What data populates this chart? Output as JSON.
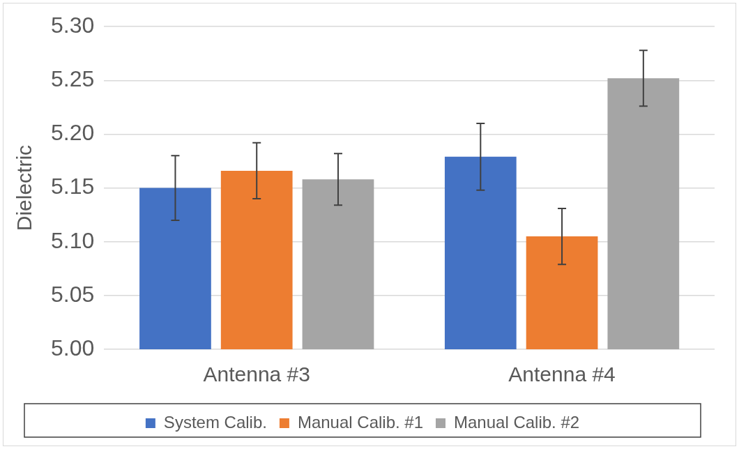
{
  "chart_data": {
    "type": "bar",
    "ylabel": "Dielectric",
    "categories": [
      "Antenna #3",
      "Antenna #4"
    ],
    "series": [
      {
        "name": "System Calib.",
        "color": "#4472c4",
        "values": [
          5.15,
          5.179
        ],
        "errors": [
          0.03,
          0.031
        ]
      },
      {
        "name": "Manual Calib. #1",
        "color": "#ed7d31",
        "values": [
          5.166,
          5.105
        ],
        "errors": [
          0.026,
          0.026
        ]
      },
      {
        "name": "Manual Calib. #2",
        "color": "#a5a5a5",
        "values": [
          5.158,
          5.252
        ],
        "errors": [
          0.024,
          0.026
        ]
      }
    ],
    "ylim": [
      5.0,
      5.3
    ],
    "yticks": [
      {
        "value": 5.0,
        "label": "5.00"
      },
      {
        "value": 5.05,
        "label": "5.05"
      },
      {
        "value": 5.1,
        "label": "5.10"
      },
      {
        "value": 5.15,
        "label": "5.15"
      },
      {
        "value": 5.2,
        "label": "5.20"
      },
      {
        "value": 5.25,
        "label": "5.25"
      },
      {
        "value": 5.3,
        "label": "5.30"
      }
    ],
    "grid": "y",
    "legend": "bottom"
  }
}
